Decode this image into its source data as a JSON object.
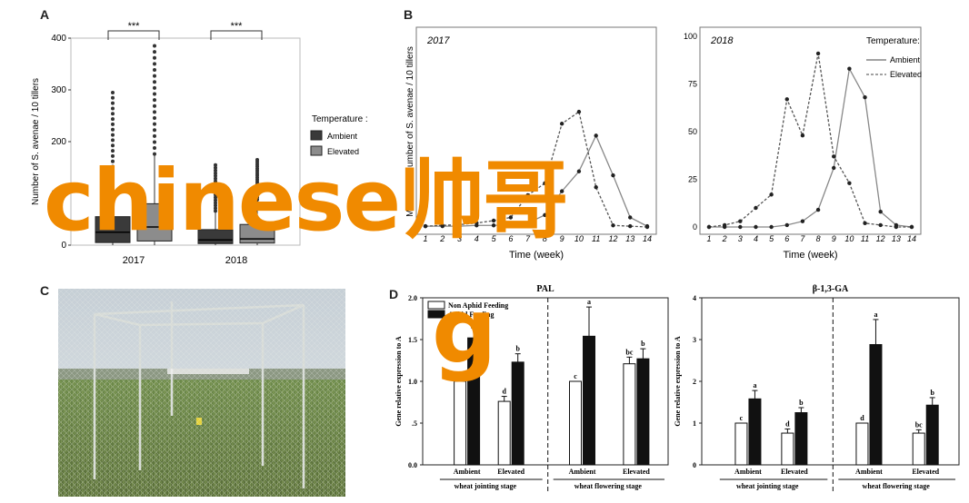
{
  "panels": {
    "a": "A",
    "b": "B",
    "c": "C",
    "d": "D"
  },
  "watermark": {
    "line1": "chinese帅哥",
    "line2": "g"
  },
  "panel_a": {
    "ylabel": "Number of S. avenae / 10 tillers",
    "yticks": [
      "0",
      "100",
      "200",
      "300",
      "400"
    ],
    "xticks": [
      "2017",
      "2018"
    ],
    "sig": [
      "***",
      "***"
    ],
    "legend_title": "Temperature :",
    "legend": [
      "Ambient",
      "Elevated"
    ],
    "colors": {
      "ambient": "#3a3a3a",
      "elevated": "#8c8c8c"
    }
  },
  "panel_b": {
    "ylabel": "Mean ±SE number of S. avenae / 10 tillers",
    "xlabel": "Time (week)",
    "legend_title": "Temperature:",
    "legend": [
      "Ambient",
      "Elevated"
    ],
    "years": [
      "2017",
      "2018"
    ],
    "xticks": [
      "1",
      "2",
      "3",
      "4",
      "5",
      "6",
      "7",
      "8",
      "9",
      "10",
      "11",
      "12",
      "13",
      "14"
    ],
    "yticks_2018": [
      "0",
      "25",
      "50",
      "75",
      "100"
    ]
  },
  "panel_d": {
    "ylabel": "Gene relative expression to A",
    "ylabel_sub": "N",
    "legend": [
      "Non Aphid Feeding",
      "Aphid Feeding"
    ],
    "group_labels": [
      "Ambient",
      "Elevated",
      "Ambient",
      "Elevated"
    ],
    "stages": [
      "wheat jointing stage",
      "wheat flowering stage"
    ],
    "pal_title": "PAL",
    "pal_yticks": [
      "0.0",
      ".5",
      "1.0",
      "1.5",
      "2.0"
    ],
    "glu_title": "β-1,3-GA",
    "glu_yticks": [
      "0",
      "1",
      "2",
      "3",
      "4"
    ]
  },
  "chart_data": [
    {
      "type": "box",
      "title": "",
      "ylabel": "Number of S. avenae / 10 tillers",
      "ylim": [
        0,
        400
      ],
      "categories": [
        "2017",
        "2018"
      ],
      "series": [
        {
          "name": "Ambient",
          "median": [
            25,
            10
          ],
          "q1": [
            5,
            3
          ],
          "q3": [
            55,
            30
          ]
        },
        {
          "name": "Elevated",
          "median": [
            35,
            12
          ],
          "q1": [
            8,
            4
          ],
          "q3": [
            80,
            40
          ]
        }
      ],
      "significance": [
        "***",
        "***"
      ]
    },
    {
      "type": "line",
      "title": "2017",
      "xlabel": "Time (week)",
      "ylabel": "Mean ±SE number of S. avenae / 10 tillers",
      "ylim": [
        0,
        240
      ],
      "x": [
        1,
        2,
        3,
        4,
        5,
        6,
        7,
        8,
        9,
        10,
        11,
        12,
        13,
        14
      ],
      "series": [
        {
          "name": "Ambient",
          "values": [
            1,
            1,
            1,
            2,
            2,
            3,
            5,
            15,
            45,
            70,
            115,
            65,
            12,
            1
          ]
        },
        {
          "name": "Elevated",
          "values": [
            1,
            2,
            3,
            5,
            8,
            12,
            40,
            55,
            130,
            145,
            50,
            2,
            1,
            0
          ]
        }
      ]
    },
    {
      "type": "line",
      "title": "2018",
      "xlabel": "Time (week)",
      "ylim": [
        0,
        100
      ],
      "x": [
        1,
        2,
        3,
        4,
        5,
        6,
        7,
        8,
        9,
        10,
        11,
        12,
        13,
        14
      ],
      "series": [
        {
          "name": "Ambient",
          "values": [
            0,
            0,
            0,
            0,
            0,
            1,
            3,
            9,
            31,
            83,
            68,
            8,
            1,
            0
          ]
        },
        {
          "name": "Elevated",
          "values": [
            0,
            1,
            3,
            10,
            17,
            67,
            48,
            91,
            37,
            23,
            2,
            1,
            0,
            0
          ]
        }
      ]
    },
    {
      "type": "bar",
      "title": "PAL",
      "ylim": [
        0,
        2.0
      ],
      "categories": [
        "Ambient",
        "Elevated",
        "Ambient",
        "Elevated"
      ],
      "series": [
        {
          "name": "Non Aphid Feeding",
          "values": [
            1.0,
            0.76,
            1.0,
            1.21
          ],
          "err": [
            0,
            0.06,
            0,
            0.08
          ],
          "letters": [
            "c",
            "d",
            "c",
            "bc"
          ]
        },
        {
          "name": "Aphid Feeding",
          "values": [
            1.52,
            1.23,
            1.54,
            1.27
          ],
          "err": [
            0.12,
            0.1,
            0.35,
            0.12
          ],
          "letters": [
            "",
            "b",
            "a",
            "b"
          ]
        }
      ]
    },
    {
      "type": "bar",
      "title": "β-1,3-GA",
      "ylim": [
        0,
        4
      ],
      "categories": [
        "Ambient",
        "Elevated",
        "Ambient",
        "Elevated"
      ],
      "series": [
        {
          "name": "Non Aphid Feeding",
          "values": [
            1.0,
            0.76,
            1.0,
            0.76
          ],
          "err": [
            0,
            0.1,
            0,
            0.08
          ],
          "letters": [
            "c",
            "d",
            "d",
            "bc"
          ]
        },
        {
          "name": "Aphid Feeding",
          "values": [
            1.58,
            1.25,
            2.88,
            1.43
          ],
          "err": [
            0.2,
            0.12,
            0.6,
            0.18
          ],
          "letters": [
            "a",
            "b",
            "a",
            "b"
          ]
        }
      ]
    }
  ]
}
